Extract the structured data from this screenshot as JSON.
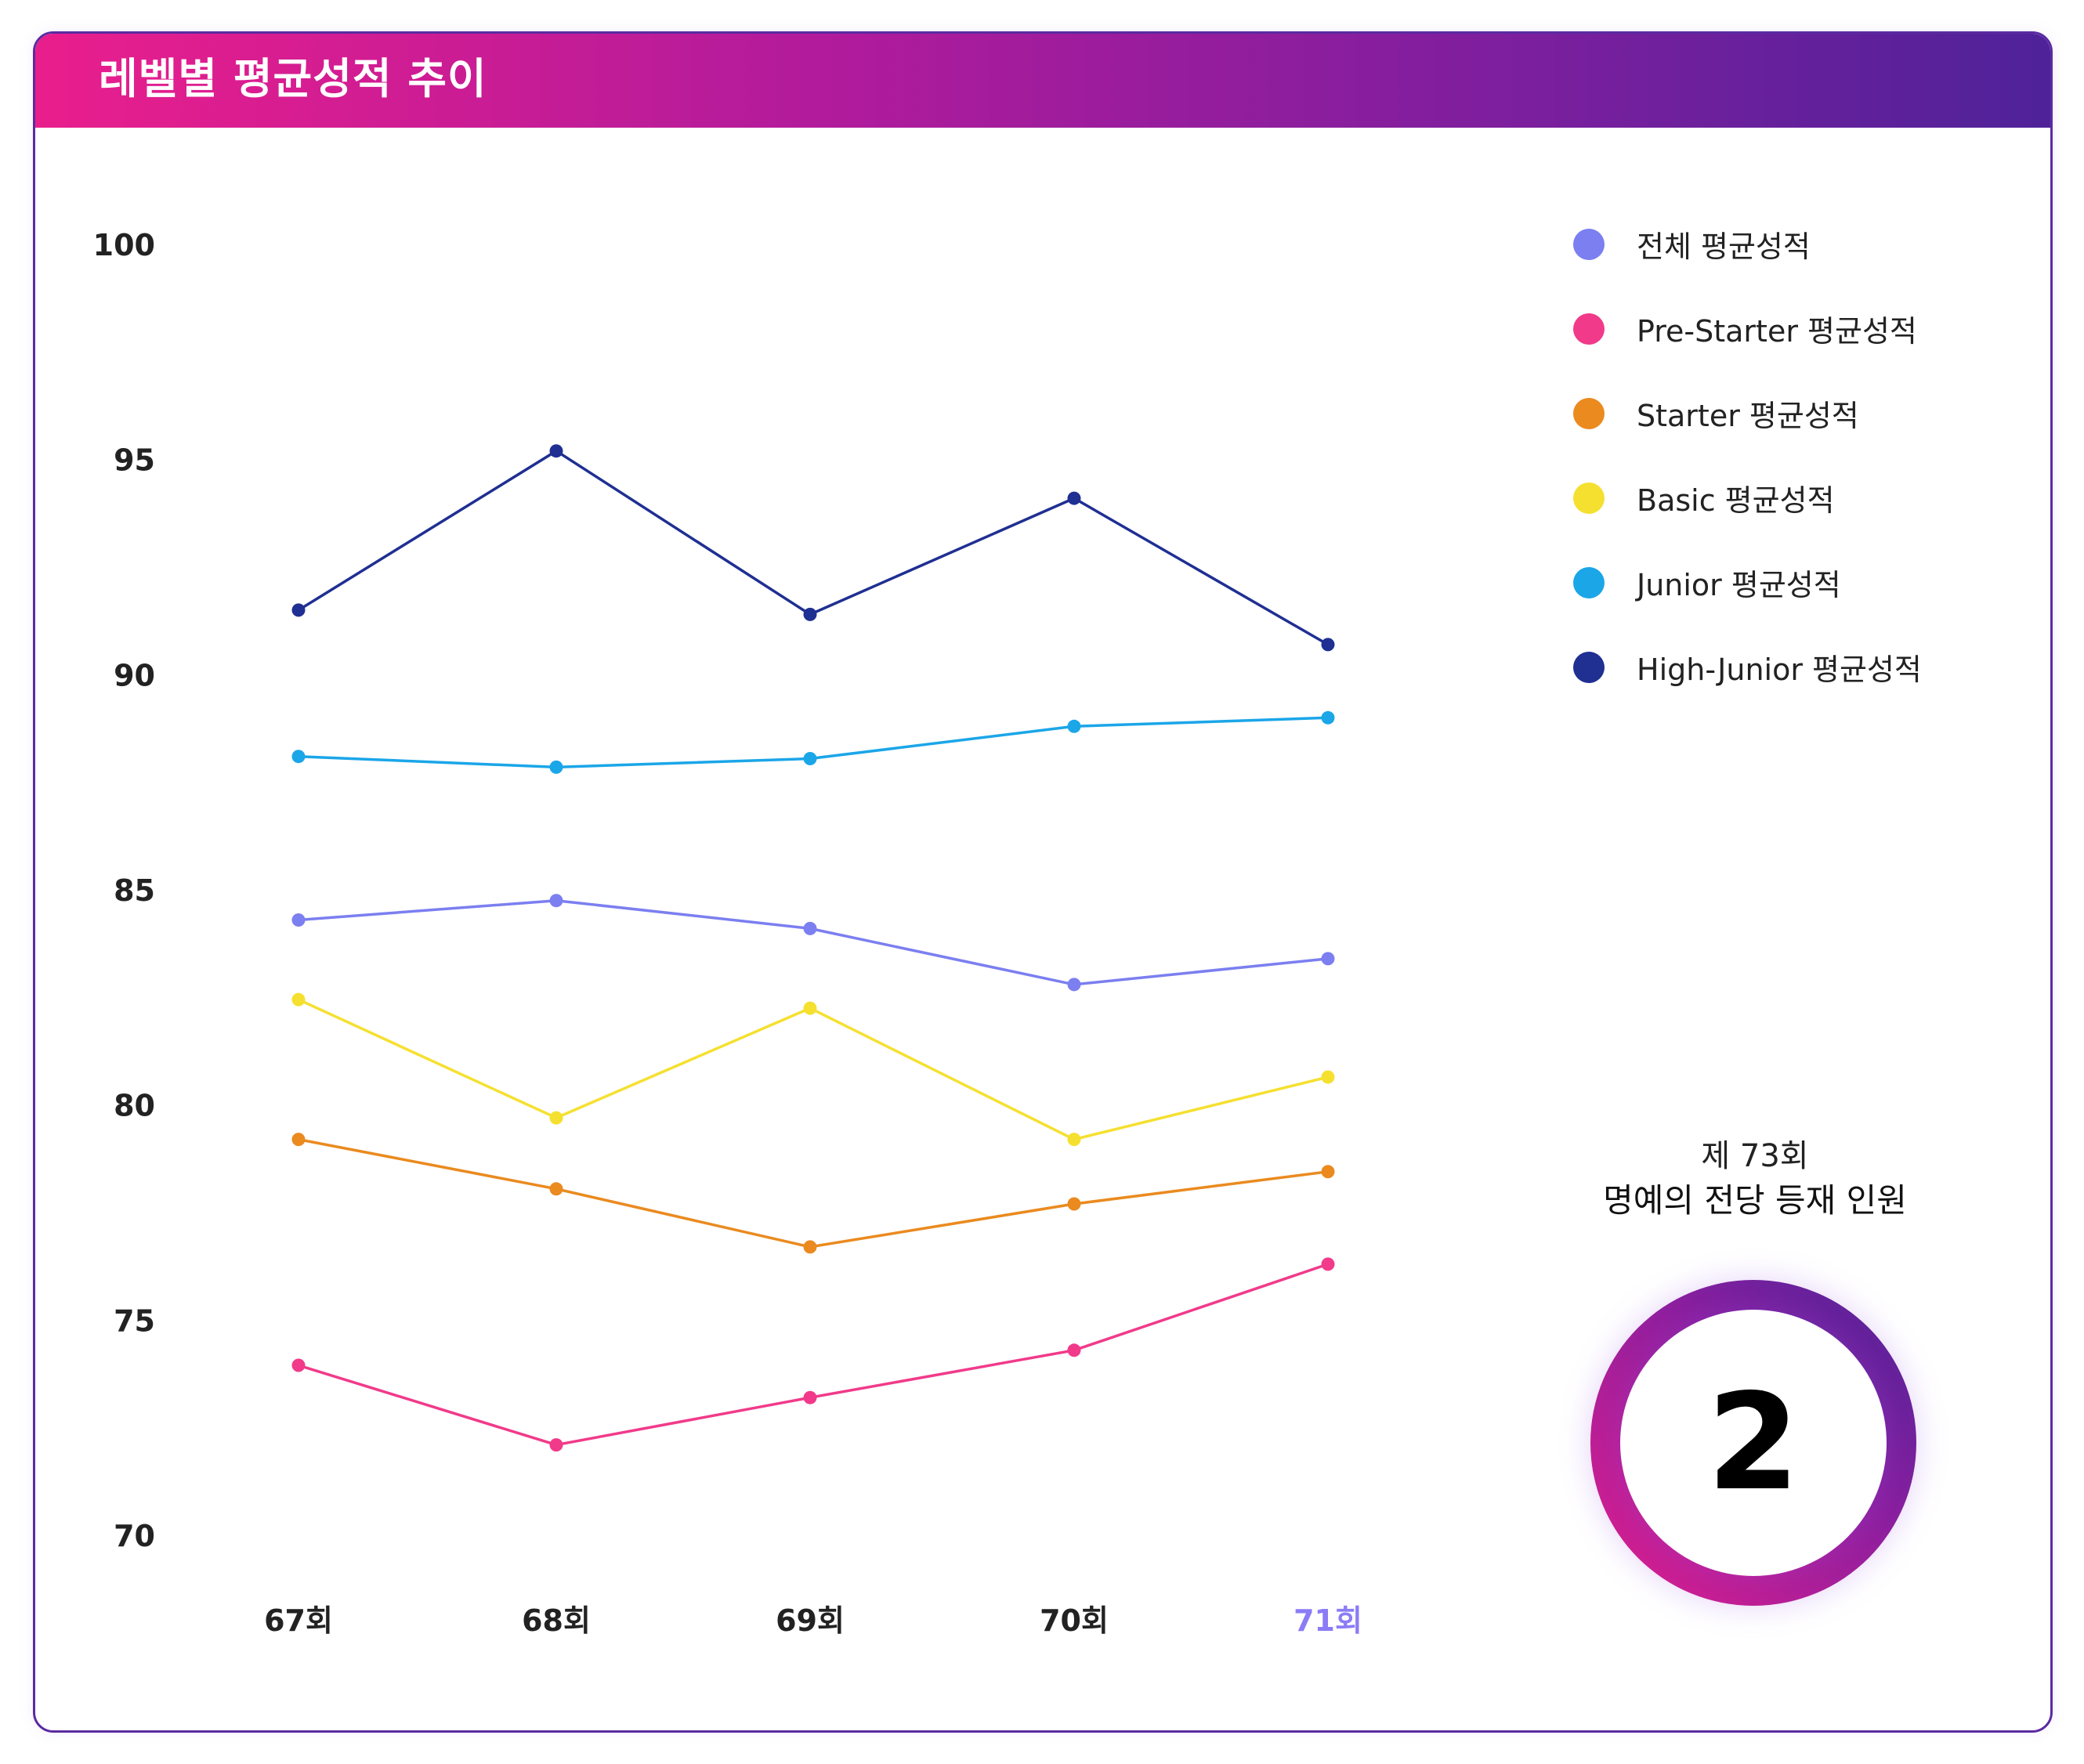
{
  "header": {
    "title": "레벨별 평균성적 추이"
  },
  "chart_data": {
    "type": "line",
    "categories": [
      "67회",
      "68회",
      "69회",
      "70회",
      "71회"
    ],
    "highlighted_category": "71회",
    "ylim": [
      70,
      100
    ],
    "yticks": [
      "100",
      "95",
      "90",
      "85",
      "80",
      "75",
      "70"
    ],
    "grid": false,
    "legend_position": "right",
    "series": [
      {
        "name": "전체 평균성적",
        "color": "#7b7ff0",
        "values": [
          84.3,
          84.75,
          84.1,
          82.8,
          83.4
        ]
      },
      {
        "name": "Pre-Starter 평균성적",
        "color": "#f13a8a",
        "values": [
          73.95,
          72.1,
          73.2,
          74.3,
          76.3
        ]
      },
      {
        "name": "Starter 평균성적",
        "color": "#ea8a1f",
        "values": [
          79.2,
          78.05,
          76.7,
          77.7,
          78.45
        ]
      },
      {
        "name": "Basic 평균성적",
        "color": "#f5e030",
        "values": [
          82.45,
          79.7,
          82.25,
          79.2,
          80.65
        ]
      },
      {
        "name": "Junior 평균성적",
        "color": "#1ba6e8",
        "values": [
          88.1,
          87.85,
          88.05,
          88.8,
          89.0
        ]
      },
      {
        "name": "High-Junior 평균성적",
        "color": "#1f2f92",
        "values": [
          91.5,
          95.2,
          91.4,
          94.1,
          90.7
        ]
      }
    ],
    "tick_color": "#222222",
    "highlight_color": "#8b7cf6"
  },
  "hall_of_fame": {
    "edition": "제 73회",
    "title": "명예의 전당 등재 인원",
    "count": "2"
  }
}
